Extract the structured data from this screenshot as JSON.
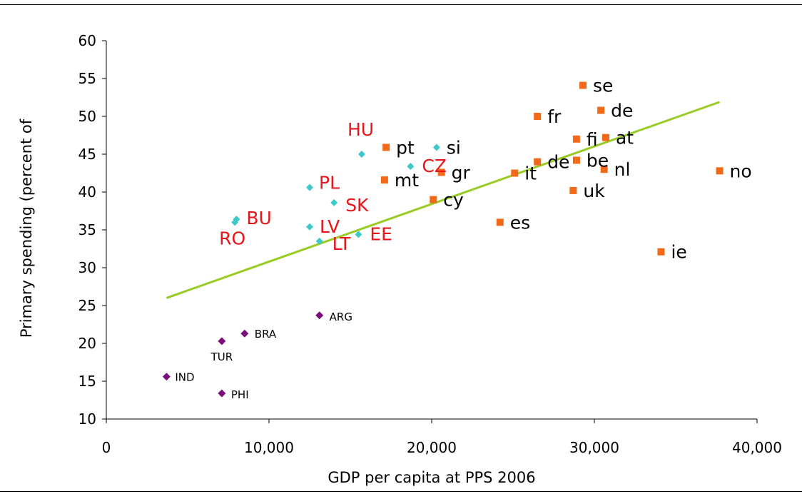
{
  "chart_data": {
    "type": "scatter",
    "title": "",
    "xlabel": "GDP per capita at PPS 2006",
    "ylabel": "Primary spending (percent of",
    "xlim": [
      0,
      40000
    ],
    "ylim": [
      10,
      60
    ],
    "x_ticks": [
      0,
      10000,
      20000,
      30000,
      40000
    ],
    "x_tick_labels": [
      "0",
      "10,000",
      "20,000",
      "30,000",
      "40,000"
    ],
    "y_ticks": [
      10,
      15,
      20,
      25,
      30,
      35,
      40,
      45,
      50,
      55,
      60
    ],
    "y_tick_labels": [
      "10",
      "15",
      "20",
      "25",
      "30",
      "35",
      "40",
      "45",
      "50",
      "55",
      "60"
    ],
    "grid": false,
    "legend": "none",
    "colors": {
      "eu15": "#f26a18",
      "nms": "#3cc9c9",
      "emerging": "#7b0d7b",
      "nms_label": "#e8161a",
      "trendline": "#99cc22"
    },
    "series": [
      {
        "group": "eu15",
        "marker": "square",
        "points": [
          {
            "label": "se",
            "x": 29300,
            "y": 54.1
          },
          {
            "label": "de",
            "x": 30400,
            "y": 50.8
          },
          {
            "label": "fr",
            "x": 26500,
            "y": 50.0
          },
          {
            "label": "fi",
            "x": 28900,
            "y": 47.0
          },
          {
            "label": "at",
            "x": 30700,
            "y": 47.2
          },
          {
            "label": "pt",
            "x": 17200,
            "y": 45.9
          },
          {
            "label": "de",
            "x": 26500,
            "y": 44.0
          },
          {
            "label": "be",
            "x": 28900,
            "y": 44.2
          },
          {
            "label": "nl",
            "x": 30600,
            "y": 43.0
          },
          {
            "label": "gr",
            "x": 20600,
            "y": 42.6
          },
          {
            "label": "it",
            "x": 25100,
            "y": 42.5
          },
          {
            "label": "no",
            "x": 37700,
            "y": 42.8
          },
          {
            "label": "mt",
            "x": 17100,
            "y": 41.6
          },
          {
            "label": "uk",
            "x": 28700,
            "y": 40.2
          },
          {
            "label": "cy",
            "x": 20100,
            "y": 39.0
          },
          {
            "label": "es",
            "x": 24200,
            "y": 36.0
          },
          {
            "label": "ie",
            "x": 34100,
            "y": 32.1
          }
        ]
      },
      {
        "group": "nms",
        "marker": "diamond",
        "points": [
          {
            "label": "HU",
            "x": 15700,
            "y": 45.0
          },
          {
            "label": "si",
            "x": 20300,
            "y": 45.9
          },
          {
            "label": "CZ",
            "x": 18700,
            "y": 43.4
          },
          {
            "label": "PL",
            "x": 12500,
            "y": 40.6
          },
          {
            "label": "SK",
            "x": 14000,
            "y": 38.6
          },
          {
            "label": "BU",
            "x": 8000,
            "y": 36.4
          },
          {
            "label": "RO",
            "x": 7900,
            "y": 36.0
          },
          {
            "label": "LV",
            "x": 12500,
            "y": 35.4
          },
          {
            "label": "EE",
            "x": 15500,
            "y": 34.4
          },
          {
            "label": "LT",
            "x": 13100,
            "y": 33.5
          }
        ]
      },
      {
        "group": "emerging",
        "marker": "diamond",
        "points": [
          {
            "label": "ARG",
            "x": 13100,
            "y": 23.7
          },
          {
            "label": "BRA",
            "x": 8500,
            "y": 21.3
          },
          {
            "label": "TUR",
            "x": 7100,
            "y": 20.3
          },
          {
            "label": "IND",
            "x": 3700,
            "y": 15.6
          },
          {
            "label": "PHI",
            "x": 7100,
            "y": 13.4
          }
        ]
      }
    ],
    "trendline": {
      "x": [
        3700,
        37700
      ],
      "y": [
        26.0,
        51.9
      ]
    }
  }
}
